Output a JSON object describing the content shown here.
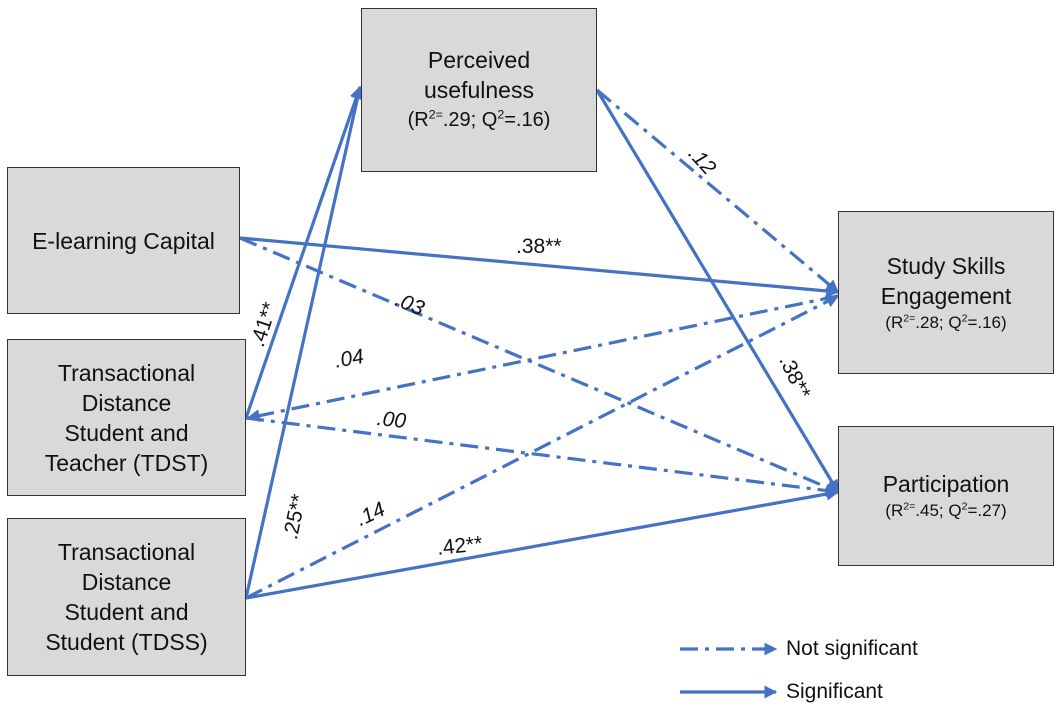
{
  "nodes": {
    "perceived_usefulness": {
      "line1": "Perceived",
      "line2": "usefulness",
      "r2": ".29",
      "q2": ".16"
    },
    "elearning_capital": {
      "line1": "E-learning Capital"
    },
    "tdst": {
      "line1": "Transactional",
      "line2": "Distance",
      "line3": "Student and",
      "line4": "Teacher (TDST)"
    },
    "tdss": {
      "line1": "Transactional",
      "line2": "Distance",
      "line3": "Student and",
      "line4": "Student (TDSS)"
    },
    "study_skills": {
      "line1": "Study Skills",
      "line2": "Engagement",
      "r2": ".28",
      "q2": ".16"
    },
    "participation": {
      "line1": "Participation",
      "r2": ".45",
      "q2": ".27"
    }
  },
  "stats_labels": {
    "open": "(R",
    "sq": "2",
    "eq": "=",
    "sep": "; Q",
    "q_eq": "=",
    "close": ")"
  },
  "edges": [
    {
      "from": "E-learning Capital",
      "to": "Study Skills Engagement",
      "coef": ".38**",
      "significant": true
    },
    {
      "from": "E-learning Capital",
      "to": "Participation",
      "coef": ".03",
      "significant": false
    },
    {
      "from": "TDST",
      "to": "Perceived usefulness",
      "coef": ".41**",
      "significant": true
    },
    {
      "from": "TDST",
      "to": "Study Skills Engagement",
      "coef": ".04",
      "significant": false
    },
    {
      "from": "TDST",
      "to": "Participation",
      "coef": ".00",
      "significant": false
    },
    {
      "from": "TDSS",
      "to": "Perceived usefulness",
      "coef": ".25**",
      "significant": true
    },
    {
      "from": "TDSS",
      "to": "Study Skills Engagement",
      "coef": ".14",
      "significant": false
    },
    {
      "from": "TDSS",
      "to": "Participation",
      "coef": ".42**",
      "significant": true
    },
    {
      "from": "Perceived usefulness",
      "to": "Study Skills Engagement",
      "coef": ".12",
      "significant": false
    },
    {
      "from": "Perceived usefulness",
      "to": "Participation",
      "coef": ".38**",
      "significant": true
    }
  ],
  "legend": {
    "not_significant": "Not significant",
    "significant": "Significant"
  },
  "colors": {
    "arrow": "#4472c4",
    "box_fill": "#d9d9d9",
    "box_border": "#333333"
  }
}
